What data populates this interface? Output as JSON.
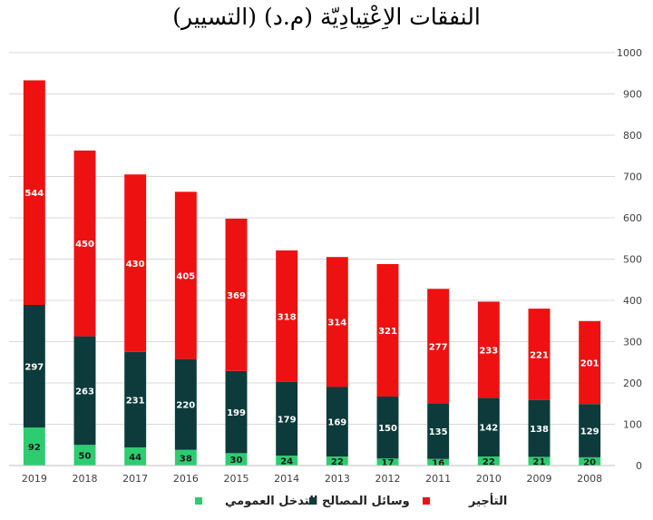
{
  "chart_data": {
    "type": "bar",
    "stacked": true,
    "title": "النفقات الاِعْتِيادِيّة (م.د) (التسيير)",
    "categories": [
      "2019",
      "2018",
      "2017",
      "2016",
      "2015",
      "2014",
      "2013",
      "2012",
      "2011",
      "2010",
      "2009",
      "2008"
    ],
    "series": [
      {
        "name": "التدخل العمومي",
        "color": "#2ecc71",
        "values": [
          92,
          50,
          44,
          38,
          30,
          24,
          22,
          17,
          16,
          22,
          21,
          20
        ]
      },
      {
        "name": "وسائل المصالح",
        "color": "#0d3b3b",
        "values": [
          297,
          263,
          231,
          220,
          199,
          179,
          169,
          150,
          135,
          142,
          138,
          129
        ]
      },
      {
        "name": "التأجير",
        "color": "#ee1111",
        "values": [
          544,
          450,
          430,
          405,
          369,
          318,
          314,
          321,
          277,
          233,
          221,
          201
        ]
      }
    ],
    "ylim": [
      0,
      1000
    ],
    "yticks": [
      0,
      100,
      200,
      300,
      400,
      500,
      600,
      700,
      800,
      900,
      1000
    ],
    "y_axis_position": "right",
    "grid": true,
    "legend_position": "bottom"
  }
}
